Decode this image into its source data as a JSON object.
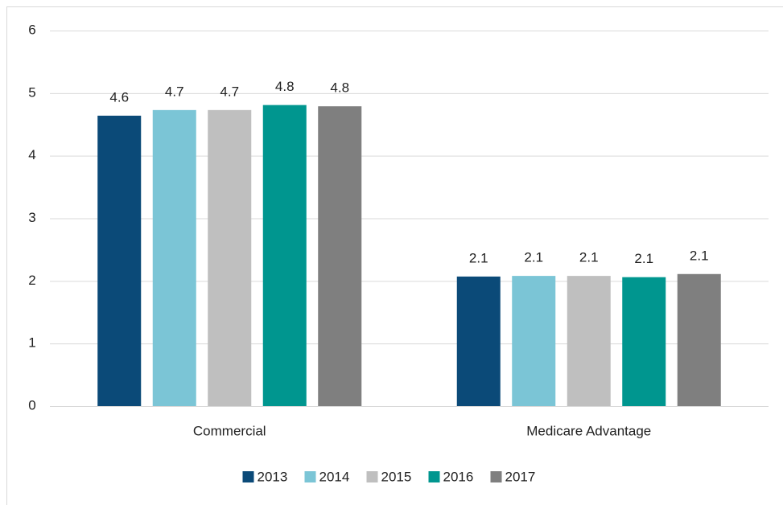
{
  "chart_data": {
    "type": "bar",
    "categories": [
      "Commercial",
      "Medicare Advantage"
    ],
    "series": [
      {
        "name": "2013",
        "color": "#0b4a78",
        "values": [
          4.64,
          2.07
        ],
        "value_labels": [
          "4.6",
          "2.1"
        ]
      },
      {
        "name": "2014",
        "color": "#7bc5d6",
        "values": [
          4.73,
          2.08
        ],
        "value_labels": [
          "4.7",
          "2.1"
        ]
      },
      {
        "name": "2015",
        "color": "#bfbfbf",
        "values": [
          4.73,
          2.08
        ],
        "value_labels": [
          "4.7",
          "2.1"
        ]
      },
      {
        "name": "2016",
        "color": "#00968f",
        "values": [
          4.81,
          2.06
        ],
        "value_labels": [
          "4.8",
          "2.1"
        ]
      },
      {
        "name": "2017",
        "color": "#7f7f7f",
        "values": [
          4.79,
          2.11
        ],
        "value_labels": [
          "4.8",
          "2.1"
        ]
      }
    ],
    "ylim": [
      0,
      6
    ],
    "yticks": [
      0,
      1,
      2,
      3,
      4,
      5,
      6
    ],
    "grid": true,
    "legend": "bottom"
  }
}
